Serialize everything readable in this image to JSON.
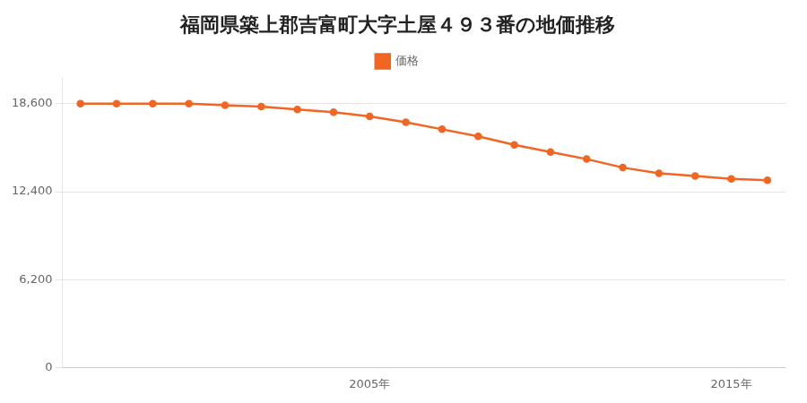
{
  "chart_data": {
    "type": "line",
    "title": "福岡県築上郡吉富町大字土屋４９３番の地価推移",
    "x": [
      1997,
      1998,
      1999,
      2000,
      2001,
      2002,
      2003,
      2004,
      2005,
      2006,
      2007,
      2008,
      2009,
      2010,
      2011,
      2012,
      2013,
      2014,
      2015,
      2016
    ],
    "series": [
      {
        "name": "価格",
        "color": "#f26522",
        "marker": "circle",
        "values": [
          18600,
          18600,
          18600,
          18600,
          18500,
          18400,
          18200,
          18000,
          17700,
          17300,
          16800,
          16300,
          15700,
          15200,
          14700,
          14100,
          13700,
          13500,
          13300,
          13200
        ]
      }
    ],
    "xlim": [
      1996.5,
      2016.5
    ],
    "xticks": [
      {
        "value": 2005,
        "label": "2005年"
      },
      {
        "value": 2015,
        "label": "2015年"
      }
    ],
    "ylim": [
      0,
      20460
    ],
    "yticks": [
      0,
      {
        "value": 6200,
        "label": "6,200"
      },
      {
        "value": 12400,
        "label": "12,400"
      },
      {
        "value": 18600,
        "label": "18,600"
      }
    ],
    "grid": "y",
    "legend": "top"
  }
}
